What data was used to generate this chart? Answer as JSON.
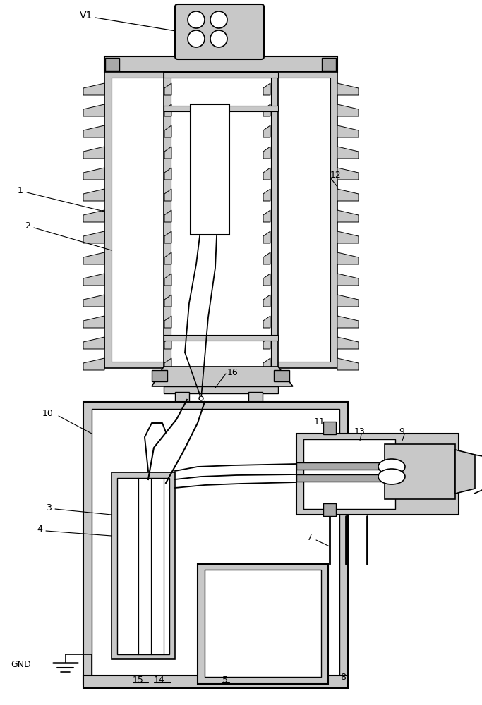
{
  "bg_color": "#ffffff",
  "lc": "#000000",
  "gray_light": "#c8c8c8",
  "gray_med": "#a8a8a8",
  "white": "#ffffff"
}
